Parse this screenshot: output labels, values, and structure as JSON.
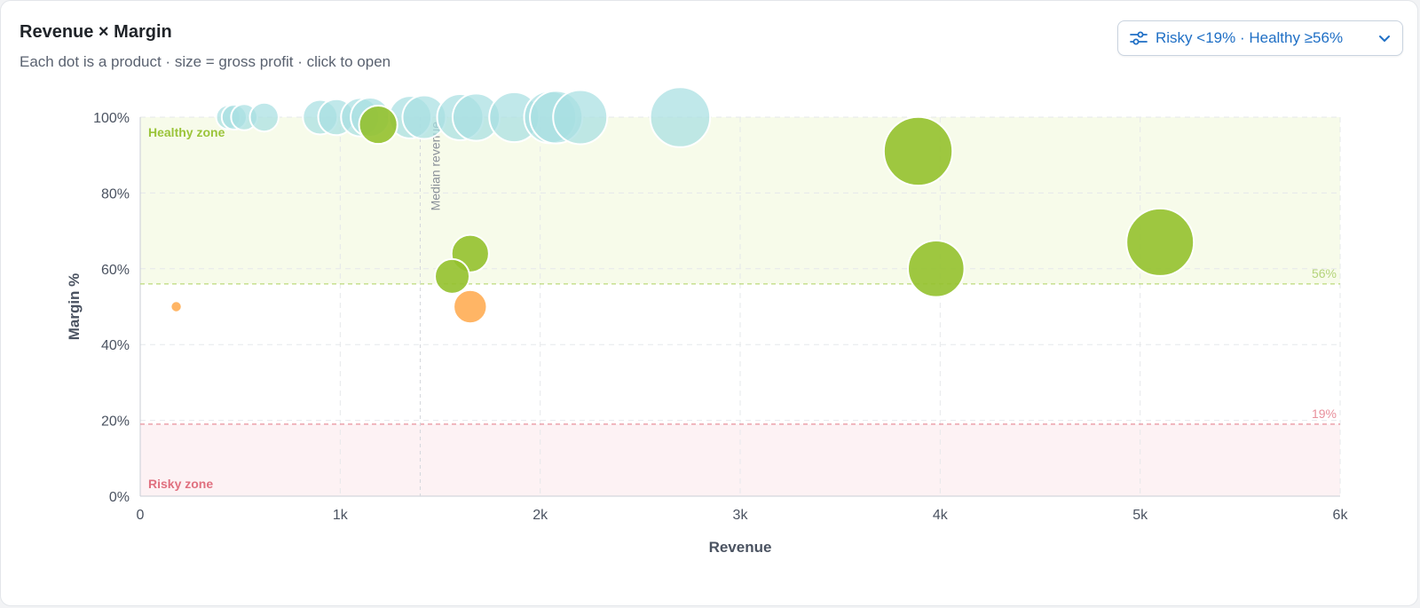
{
  "header": {
    "title": "Revenue × Margin",
    "subtitle": "Each dot is a product · size = gross profit · click to open"
  },
  "filter": {
    "label": "Risky <19% · Healthy ≥56%",
    "icon": "sliders-icon",
    "chevron": "chevron-down-icon"
  },
  "chart_data": {
    "type": "scatter",
    "xlabel": "Revenue",
    "ylabel": "Margin %",
    "xlim": [
      0,
      6000
    ],
    "ylim": [
      0,
      100
    ],
    "x_ticks": [
      0,
      1000,
      2000,
      3000,
      4000,
      5000,
      6000
    ],
    "x_tick_labels": [
      "0",
      "1k",
      "2k",
      "3k",
      "4k",
      "5k",
      "6k"
    ],
    "y_ticks": [
      0,
      20,
      40,
      60,
      80,
      100
    ],
    "y_tick_labels": [
      "0%",
      "20%",
      "40%",
      "60%",
      "80%",
      "100%"
    ],
    "grid": true,
    "zones": {
      "healthy": {
        "label": "Healthy zone",
        "threshold": 56,
        "threshold_label": "56%",
        "color": "#9bc43a"
      },
      "risky": {
        "label": "Risky zone",
        "threshold": 19,
        "threshold_label": "19%",
        "color": "#e0707f"
      }
    },
    "median_revenue": {
      "label": "Median revenue",
      "value": 1400
    },
    "status_colors": {
      "no_cost": "#a8dfe2",
      "healthy": "#94c12e",
      "ok": "#ffa84a"
    },
    "points": [
      {
        "x": 440,
        "y": 100,
        "profit": 440,
        "status": "no_cost"
      },
      {
        "x": 470,
        "y": 100,
        "profit": 470,
        "status": "no_cost"
      },
      {
        "x": 520,
        "y": 100,
        "profit": 520,
        "status": "no_cost"
      },
      {
        "x": 620,
        "y": 100,
        "profit": 620,
        "status": "no_cost"
      },
      {
        "x": 900,
        "y": 100,
        "profit": 900,
        "status": "no_cost"
      },
      {
        "x": 980,
        "y": 100,
        "profit": 980,
        "status": "no_cost"
      },
      {
        "x": 1100,
        "y": 100,
        "profit": 1100,
        "status": "no_cost"
      },
      {
        "x": 1150,
        "y": 100,
        "profit": 1150,
        "status": "no_cost"
      },
      {
        "x": 1350,
        "y": 100,
        "profit": 1350,
        "status": "no_cost"
      },
      {
        "x": 1420,
        "y": 100,
        "profit": 1420,
        "status": "no_cost"
      },
      {
        "x": 1600,
        "y": 100,
        "profit": 1600,
        "status": "no_cost"
      },
      {
        "x": 1680,
        "y": 100,
        "profit": 1680,
        "status": "no_cost"
      },
      {
        "x": 1870,
        "y": 100,
        "profit": 1870,
        "status": "no_cost"
      },
      {
        "x": 2050,
        "y": 100,
        "profit": 2050,
        "status": "no_cost"
      },
      {
        "x": 2080,
        "y": 100,
        "profit": 2080,
        "status": "no_cost"
      },
      {
        "x": 2200,
        "y": 100,
        "profit": 2200,
        "status": "no_cost"
      },
      {
        "x": 2700,
        "y": 100,
        "profit": 2700,
        "status": "no_cost"
      },
      {
        "x": 1190,
        "y": 98,
        "profit": 1100,
        "status": "healthy"
      },
      {
        "x": 1650,
        "y": 64,
        "profit": 1050,
        "status": "healthy"
      },
      {
        "x": 1560,
        "y": 58,
        "profit": 900,
        "status": "healthy"
      },
      {
        "x": 3890,
        "y": 91,
        "profit": 3550,
        "status": "healthy"
      },
      {
        "x": 3980,
        "y": 60,
        "profit": 2400,
        "status": "healthy"
      },
      {
        "x": 5100,
        "y": 67,
        "profit": 3420,
        "status": "healthy"
      },
      {
        "x": 180,
        "y": 50,
        "profit": 90,
        "status": "ok"
      },
      {
        "x": 1650,
        "y": 50,
        "profit": 825,
        "status": "ok"
      }
    ]
  }
}
